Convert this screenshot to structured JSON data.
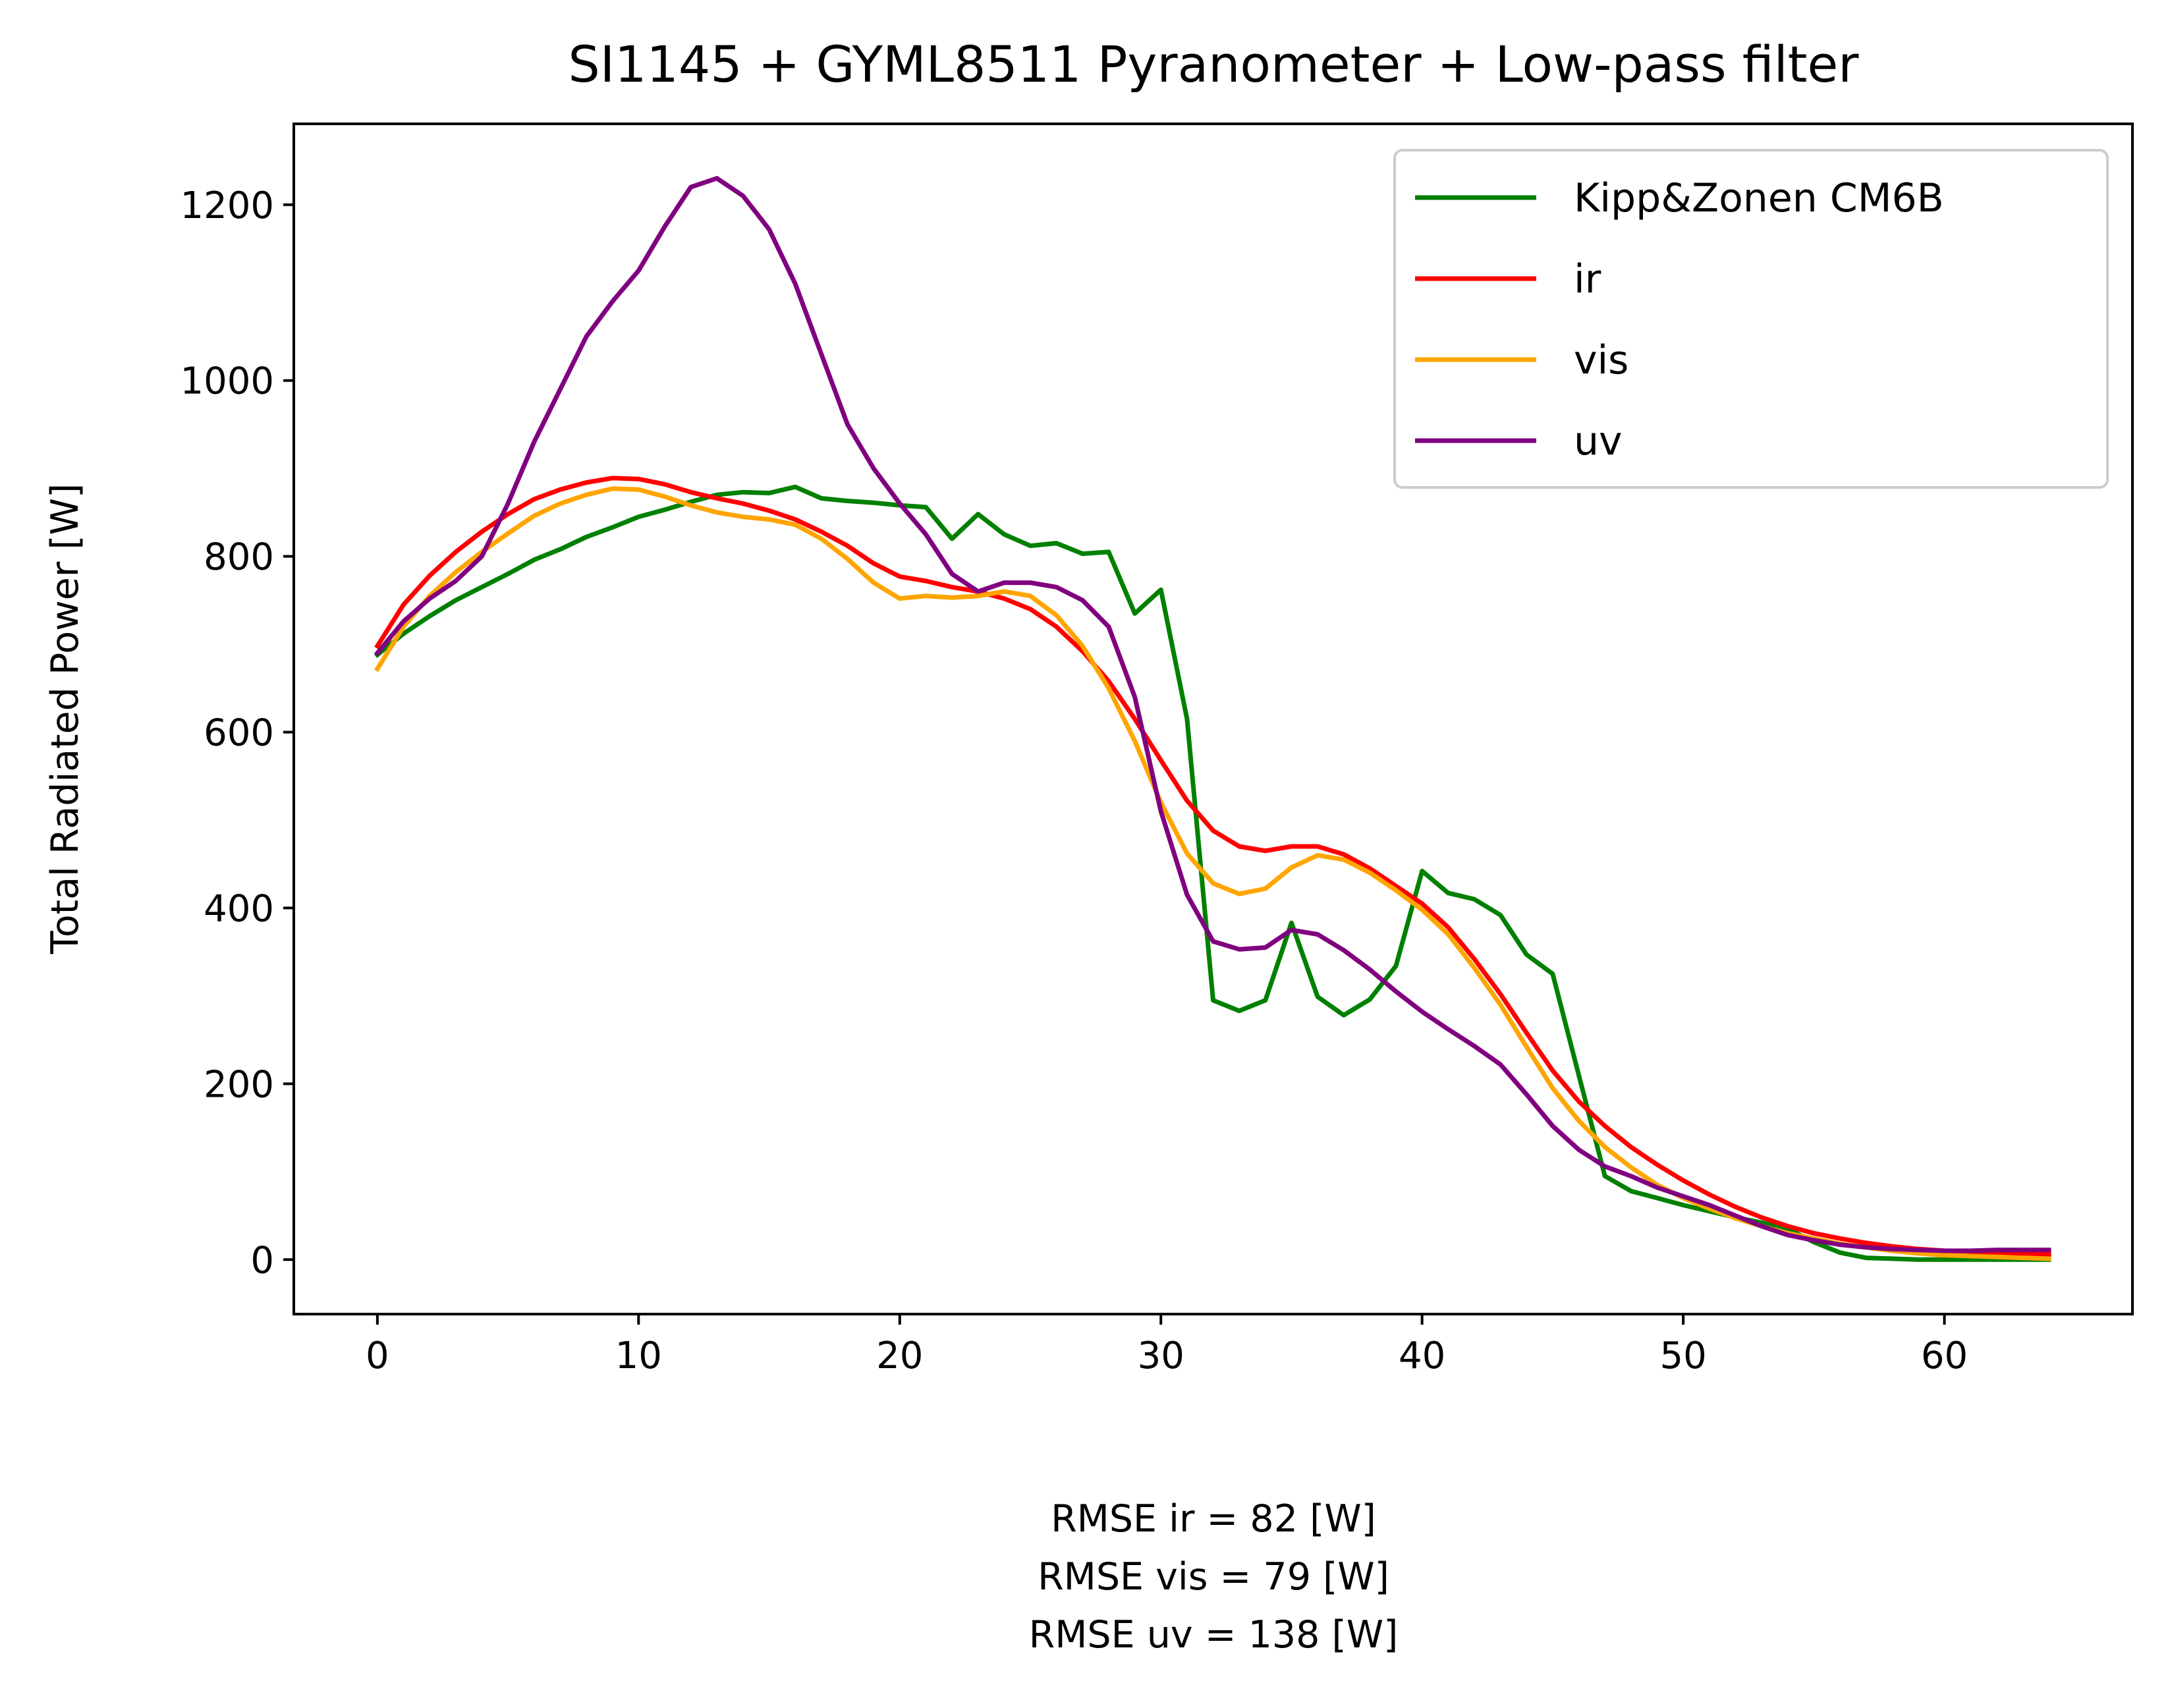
{
  "chart_data": {
    "type": "line",
    "title": "SI1145 + GYML8511 Pyranometer + Low-pass filter",
    "xlabel": "",
    "ylabel": "Total Radiated Power [W]",
    "xlim": [
      -3.2,
      67.2
    ],
    "ylim": [
      -62,
      1292
    ],
    "x_ticks": [
      0,
      10,
      20,
      30,
      40,
      50,
      60
    ],
    "y_ticks": [
      0,
      200,
      400,
      600,
      800,
      1000,
      1200
    ],
    "grid": false,
    "legend_position": "top-right",
    "x": [
      0,
      1,
      2,
      3,
      4,
      5,
      6,
      7,
      8,
      9,
      10,
      11,
      12,
      13,
      14,
      15,
      16,
      17,
      18,
      19,
      20,
      21,
      22,
      23,
      24,
      25,
      26,
      27,
      28,
      29,
      30,
      31,
      32,
      33,
      34,
      35,
      36,
      37,
      38,
      39,
      40,
      41,
      42,
      43,
      44,
      45,
      46,
      47,
      48,
      49,
      50,
      51,
      52,
      53,
      54,
      55,
      56,
      57,
      58,
      59,
      60,
      61,
      62,
      63,
      64
    ],
    "series": [
      {
        "name": "Kipp&Zonen CM6B",
        "color": "#008000",
        "values": [
          688,
          712,
          732,
          750,
          765,
          780,
          796,
          808,
          822,
          833,
          845,
          853,
          862,
          870,
          873,
          872,
          879,
          866,
          863,
          861,
          858,
          856,
          820,
          848,
          825,
          812,
          815,
          803,
          805,
          735,
          762,
          615,
          295,
          283,
          295,
          383,
          299,
          278,
          296,
          334,
          442,
          417,
          410,
          392,
          347,
          325,
          210,
          95,
          78,
          70,
          62,
          55,
          48,
          42,
          35,
          20,
          8,
          2,
          1,
          0,
          0,
          0,
          0,
          0,
          0
        ]
      },
      {
        "name": "ir",
        "color": "#ff0000",
        "values": [
          698,
          745,
          778,
          805,
          828,
          848,
          865,
          876,
          884,
          889,
          888,
          882,
          873,
          866,
          860,
          852,
          842,
          828,
          812,
          792,
          777,
          772,
          765,
          760,
          752,
          740,
          720,
          692,
          658,
          615,
          568,
          522,
          488,
          470,
          465,
          470,
          470,
          461,
          445,
          425,
          405,
          378,
          342,
          302,
          258,
          215,
          180,
          152,
          128,
          108,
          90,
          74,
          60,
          48,
          38,
          30,
          24,
          19,
          15,
          12,
          10,
          8,
          7,
          6,
          6
        ]
      },
      {
        "name": "vis",
        "color": "#ffa500",
        "values": [
          672,
          720,
          755,
          782,
          805,
          826,
          846,
          860,
          870,
          877,
          876,
          868,
          858,
          850,
          845,
          842,
          836,
          820,
          797,
          770,
          752,
          755,
          753,
          755,
          760,
          755,
          733,
          698,
          650,
          590,
          520,
          462,
          428,
          416,
          422,
          446,
          460,
          455,
          440,
          420,
          398,
          370,
          332,
          290,
          242,
          195,
          158,
          128,
          105,
          85,
          70,
          58,
          47,
          38,
          30,
          24,
          18,
          14,
          10,
          7,
          5,
          4,
          3,
          2,
          1
        ]
      },
      {
        "name": "uv",
        "color": "#800080",
        "values": [
          690,
          726,
          752,
          772,
          800,
          860,
          930,
          990,
          1050,
          1090,
          1125,
          1175,
          1220,
          1230,
          1210,
          1172,
          1110,
          1030,
          950,
          900,
          860,
          825,
          780,
          760,
          770,
          770,
          765,
          750,
          720,
          640,
          510,
          415,
          362,
          353,
          355,
          375,
          370,
          352,
          330,
          305,
          282,
          262,
          243,
          222,
          188,
          152,
          125,
          106,
          95,
          82,
          72,
          62,
          50,
          38,
          28,
          22,
          17,
          14,
          12,
          11,
          10,
          10,
          11,
          11,
          11
        ]
      }
    ]
  },
  "footer": {
    "line1": "RMSE ir = 82 [W]",
    "line2": "RMSE vis = 79 [W]",
    "line3": "RMSE uv = 138 [W]"
  }
}
